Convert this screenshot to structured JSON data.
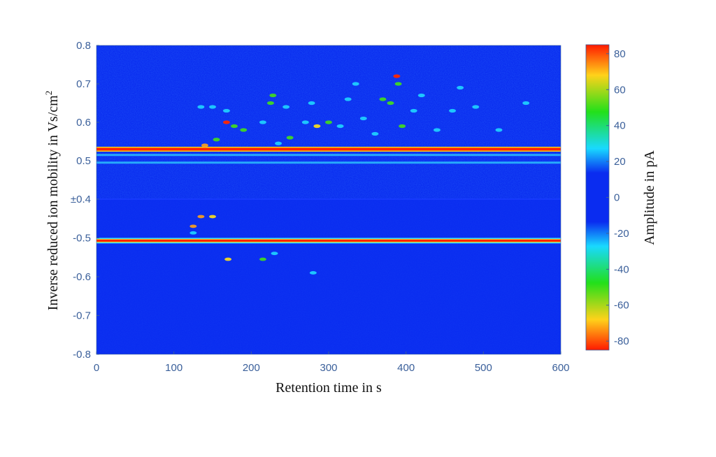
{
  "chart_data": {
    "type": "heatmap",
    "xlabel": "Retention time in s",
    "ylabel": "Inverse reduced ion mobility in Vs/cm",
    "ylabel_superscript": "2",
    "colorbar_label": "Amplitude in pA",
    "xlim": [
      0,
      600
    ],
    "x_ticks": [
      "0",
      "100",
      "200",
      "300",
      "400",
      "500",
      "600"
    ],
    "y_ticks_top": [
      "0.8",
      "0.7",
      "0.6",
      "0.5",
      "±0.4"
    ],
    "y_ticks_bottom": [
      "-0.5",
      "-0.6",
      "-0.7",
      "-0.8"
    ],
    "colorbar_ticks": [
      "80",
      "60",
      "40",
      "20",
      "0",
      "-20",
      "-40",
      "-60",
      "-80"
    ],
    "colorbar_range": [
      -85,
      85
    ],
    "background_color": "#0a2cf0",
    "positive_mode": {
      "ylim": [
        0.4,
        0.8
      ],
      "reactant_ion_peak": {
        "mobility": 0.53,
        "amplitude": 85
      },
      "bands": [
        {
          "mobility": 0.515,
          "amplitude": 30
        },
        {
          "mobility": 0.495,
          "amplitude": 28
        }
      ],
      "peaks": [
        {
          "t": 135,
          "k": 0.64,
          "a": 35
        },
        {
          "t": 150,
          "k": 0.64,
          "a": 30
        },
        {
          "t": 168,
          "k": 0.6,
          "a": 80
        },
        {
          "t": 168,
          "k": 0.63,
          "a": 35
        },
        {
          "t": 178,
          "k": 0.59,
          "a": 45
        },
        {
          "t": 190,
          "k": 0.58,
          "a": 38
        },
        {
          "t": 155,
          "k": 0.555,
          "a": 40
        },
        {
          "t": 140,
          "k": 0.54,
          "a": 60
        },
        {
          "t": 215,
          "k": 0.6,
          "a": 35
        },
        {
          "t": 225,
          "k": 0.65,
          "a": 40
        },
        {
          "t": 228,
          "k": 0.67,
          "a": 42
        },
        {
          "t": 245,
          "k": 0.64,
          "a": 32
        },
        {
          "t": 250,
          "k": 0.56,
          "a": 40
        },
        {
          "t": 270,
          "k": 0.6,
          "a": 35
        },
        {
          "t": 278,
          "k": 0.65,
          "a": 30
        },
        {
          "t": 285,
          "k": 0.59,
          "a": 55
        },
        {
          "t": 300,
          "k": 0.6,
          "a": 40
        },
        {
          "t": 315,
          "k": 0.59,
          "a": 35
        },
        {
          "t": 325,
          "k": 0.66,
          "a": 30
        },
        {
          "t": 335,
          "k": 0.7,
          "a": 35
        },
        {
          "t": 345,
          "k": 0.61,
          "a": 35
        },
        {
          "t": 360,
          "k": 0.57,
          "a": 35
        },
        {
          "t": 370,
          "k": 0.66,
          "a": 40
        },
        {
          "t": 380,
          "k": 0.65,
          "a": 42
        },
        {
          "t": 388,
          "k": 0.72,
          "a": 75
        },
        {
          "t": 390,
          "k": 0.7,
          "a": 45
        },
        {
          "t": 395,
          "k": 0.59,
          "a": 45
        },
        {
          "t": 410,
          "k": 0.63,
          "a": 30
        },
        {
          "t": 420,
          "k": 0.67,
          "a": 35
        },
        {
          "t": 440,
          "k": 0.58,
          "a": 30
        },
        {
          "t": 460,
          "k": 0.63,
          "a": 30
        },
        {
          "t": 470,
          "k": 0.69,
          "a": 30
        },
        {
          "t": 490,
          "k": 0.64,
          "a": 30
        },
        {
          "t": 520,
          "k": 0.58,
          "a": 30
        },
        {
          "t": 555,
          "k": 0.65,
          "a": 30
        },
        {
          "t": 235,
          "k": 0.545,
          "a": 35
        }
      ]
    },
    "negative_mode": {
      "ylim": [
        -0.8,
        -0.4
      ],
      "reactant_ion_peak": {
        "mobility": -0.507,
        "amplitude": -85
      },
      "peaks": [
        {
          "t": 125,
          "k": -0.47,
          "a": -60
        },
        {
          "t": 135,
          "k": -0.445,
          "a": -70
        },
        {
          "t": 150,
          "k": -0.445,
          "a": -50
        },
        {
          "t": 170,
          "k": -0.555,
          "a": -50
        },
        {
          "t": 215,
          "k": -0.555,
          "a": -40
        },
        {
          "t": 230,
          "k": -0.54,
          "a": -35
        },
        {
          "t": 280,
          "k": -0.59,
          "a": -35
        },
        {
          "t": 125,
          "k": -0.487,
          "a": -35
        }
      ]
    }
  }
}
